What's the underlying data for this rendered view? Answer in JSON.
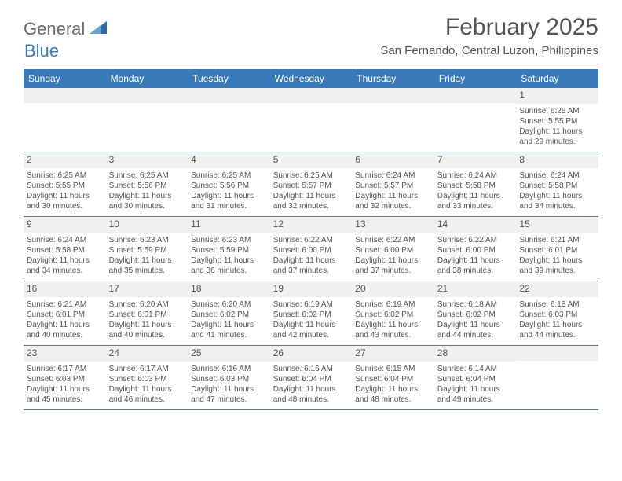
{
  "logo": {
    "text1": "General",
    "text2": "Blue"
  },
  "title": "February 2025",
  "location": "San Fernando, Central Luzon, Philippines",
  "colors": {
    "header_bg": "#3a7ab8",
    "header_text": "#ffffff",
    "daynum_bg": "#f0f0f0",
    "text": "#555555",
    "divider": "#b9b9b9",
    "week_border": "#5f7a94"
  },
  "weekdays": [
    "Sunday",
    "Monday",
    "Tuesday",
    "Wednesday",
    "Thursday",
    "Friday",
    "Saturday"
  ],
  "grid_columns": 7,
  "fonts": {
    "title_size": 30,
    "location_size": 15,
    "weekday_size": 12,
    "daynum_size": 12,
    "body_size": 10
  },
  "weeks": [
    [
      null,
      null,
      null,
      null,
      null,
      null,
      {
        "n": "1",
        "sunrise": "Sunrise: 6:26 AM",
        "sunset": "Sunset: 5:55 PM",
        "daylight1": "Daylight: 11 hours",
        "daylight2": "and 29 minutes."
      }
    ],
    [
      {
        "n": "2",
        "sunrise": "Sunrise: 6:25 AM",
        "sunset": "Sunset: 5:55 PM",
        "daylight1": "Daylight: 11 hours",
        "daylight2": "and 30 minutes."
      },
      {
        "n": "3",
        "sunrise": "Sunrise: 6:25 AM",
        "sunset": "Sunset: 5:56 PM",
        "daylight1": "Daylight: 11 hours",
        "daylight2": "and 30 minutes."
      },
      {
        "n": "4",
        "sunrise": "Sunrise: 6:25 AM",
        "sunset": "Sunset: 5:56 PM",
        "daylight1": "Daylight: 11 hours",
        "daylight2": "and 31 minutes."
      },
      {
        "n": "5",
        "sunrise": "Sunrise: 6:25 AM",
        "sunset": "Sunset: 5:57 PM",
        "daylight1": "Daylight: 11 hours",
        "daylight2": "and 32 minutes."
      },
      {
        "n": "6",
        "sunrise": "Sunrise: 6:24 AM",
        "sunset": "Sunset: 5:57 PM",
        "daylight1": "Daylight: 11 hours",
        "daylight2": "and 32 minutes."
      },
      {
        "n": "7",
        "sunrise": "Sunrise: 6:24 AM",
        "sunset": "Sunset: 5:58 PM",
        "daylight1": "Daylight: 11 hours",
        "daylight2": "and 33 minutes."
      },
      {
        "n": "8",
        "sunrise": "Sunrise: 6:24 AM",
        "sunset": "Sunset: 5:58 PM",
        "daylight1": "Daylight: 11 hours",
        "daylight2": "and 34 minutes."
      }
    ],
    [
      {
        "n": "9",
        "sunrise": "Sunrise: 6:24 AM",
        "sunset": "Sunset: 5:58 PM",
        "daylight1": "Daylight: 11 hours",
        "daylight2": "and 34 minutes."
      },
      {
        "n": "10",
        "sunrise": "Sunrise: 6:23 AM",
        "sunset": "Sunset: 5:59 PM",
        "daylight1": "Daylight: 11 hours",
        "daylight2": "and 35 minutes."
      },
      {
        "n": "11",
        "sunrise": "Sunrise: 6:23 AM",
        "sunset": "Sunset: 5:59 PM",
        "daylight1": "Daylight: 11 hours",
        "daylight2": "and 36 minutes."
      },
      {
        "n": "12",
        "sunrise": "Sunrise: 6:22 AM",
        "sunset": "Sunset: 6:00 PM",
        "daylight1": "Daylight: 11 hours",
        "daylight2": "and 37 minutes."
      },
      {
        "n": "13",
        "sunrise": "Sunrise: 6:22 AM",
        "sunset": "Sunset: 6:00 PM",
        "daylight1": "Daylight: 11 hours",
        "daylight2": "and 37 minutes."
      },
      {
        "n": "14",
        "sunrise": "Sunrise: 6:22 AM",
        "sunset": "Sunset: 6:00 PM",
        "daylight1": "Daylight: 11 hours",
        "daylight2": "and 38 minutes."
      },
      {
        "n": "15",
        "sunrise": "Sunrise: 6:21 AM",
        "sunset": "Sunset: 6:01 PM",
        "daylight1": "Daylight: 11 hours",
        "daylight2": "and 39 minutes."
      }
    ],
    [
      {
        "n": "16",
        "sunrise": "Sunrise: 6:21 AM",
        "sunset": "Sunset: 6:01 PM",
        "daylight1": "Daylight: 11 hours",
        "daylight2": "and 40 minutes."
      },
      {
        "n": "17",
        "sunrise": "Sunrise: 6:20 AM",
        "sunset": "Sunset: 6:01 PM",
        "daylight1": "Daylight: 11 hours",
        "daylight2": "and 40 minutes."
      },
      {
        "n": "18",
        "sunrise": "Sunrise: 6:20 AM",
        "sunset": "Sunset: 6:02 PM",
        "daylight1": "Daylight: 11 hours",
        "daylight2": "and 41 minutes."
      },
      {
        "n": "19",
        "sunrise": "Sunrise: 6:19 AM",
        "sunset": "Sunset: 6:02 PM",
        "daylight1": "Daylight: 11 hours",
        "daylight2": "and 42 minutes."
      },
      {
        "n": "20",
        "sunrise": "Sunrise: 6:19 AM",
        "sunset": "Sunset: 6:02 PM",
        "daylight1": "Daylight: 11 hours",
        "daylight2": "and 43 minutes."
      },
      {
        "n": "21",
        "sunrise": "Sunrise: 6:18 AM",
        "sunset": "Sunset: 6:02 PM",
        "daylight1": "Daylight: 11 hours",
        "daylight2": "and 44 minutes."
      },
      {
        "n": "22",
        "sunrise": "Sunrise: 6:18 AM",
        "sunset": "Sunset: 6:03 PM",
        "daylight1": "Daylight: 11 hours",
        "daylight2": "and 44 minutes."
      }
    ],
    [
      {
        "n": "23",
        "sunrise": "Sunrise: 6:17 AM",
        "sunset": "Sunset: 6:03 PM",
        "daylight1": "Daylight: 11 hours",
        "daylight2": "and 45 minutes."
      },
      {
        "n": "24",
        "sunrise": "Sunrise: 6:17 AM",
        "sunset": "Sunset: 6:03 PM",
        "daylight1": "Daylight: 11 hours",
        "daylight2": "and 46 minutes."
      },
      {
        "n": "25",
        "sunrise": "Sunrise: 6:16 AM",
        "sunset": "Sunset: 6:03 PM",
        "daylight1": "Daylight: 11 hours",
        "daylight2": "and 47 minutes."
      },
      {
        "n": "26",
        "sunrise": "Sunrise: 6:16 AM",
        "sunset": "Sunset: 6:04 PM",
        "daylight1": "Daylight: 11 hours",
        "daylight2": "and 48 minutes."
      },
      {
        "n": "27",
        "sunrise": "Sunrise: 6:15 AM",
        "sunset": "Sunset: 6:04 PM",
        "daylight1": "Daylight: 11 hours",
        "daylight2": "and 48 minutes."
      },
      {
        "n": "28",
        "sunrise": "Sunrise: 6:14 AM",
        "sunset": "Sunset: 6:04 PM",
        "daylight1": "Daylight: 11 hours",
        "daylight2": "and 49 minutes."
      },
      null
    ]
  ]
}
